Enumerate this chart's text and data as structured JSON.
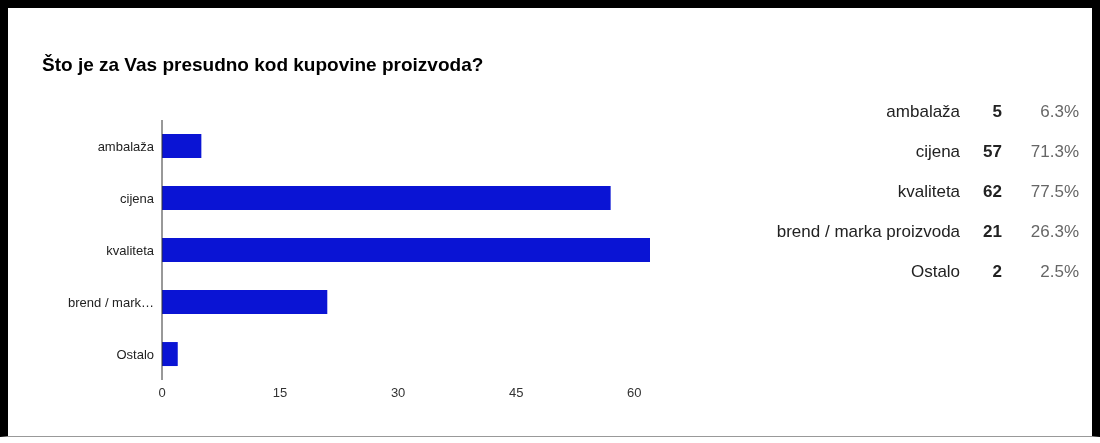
{
  "chart_data": [
    {
      "type": "bar",
      "orientation": "horizontal",
      "title": "Što je za Vas presudno kod kupovine proizvoda?",
      "categories": [
        "ambalaža",
        "cijena",
        "kvaliteta",
        "brend / mark…",
        "Ostalo"
      ],
      "values": [
        5,
        57,
        62,
        21,
        2
      ],
      "color": "#0a14d4",
      "xlim": [
        0,
        62
      ],
      "xticks": [
        0,
        15,
        30,
        45,
        60
      ]
    },
    {
      "type": "other",
      "annotations": [
        "ambalaža",
        "5",
        "6.3%",
        "cijena",
        "57",
        "71.3%",
        "kvaliteta",
        "62",
        "77.5%",
        "brend / marka proizvoda",
        "21",
        "26.3%",
        "Ostalo",
        "2",
        "2.5%"
      ]
    }
  ]
}
